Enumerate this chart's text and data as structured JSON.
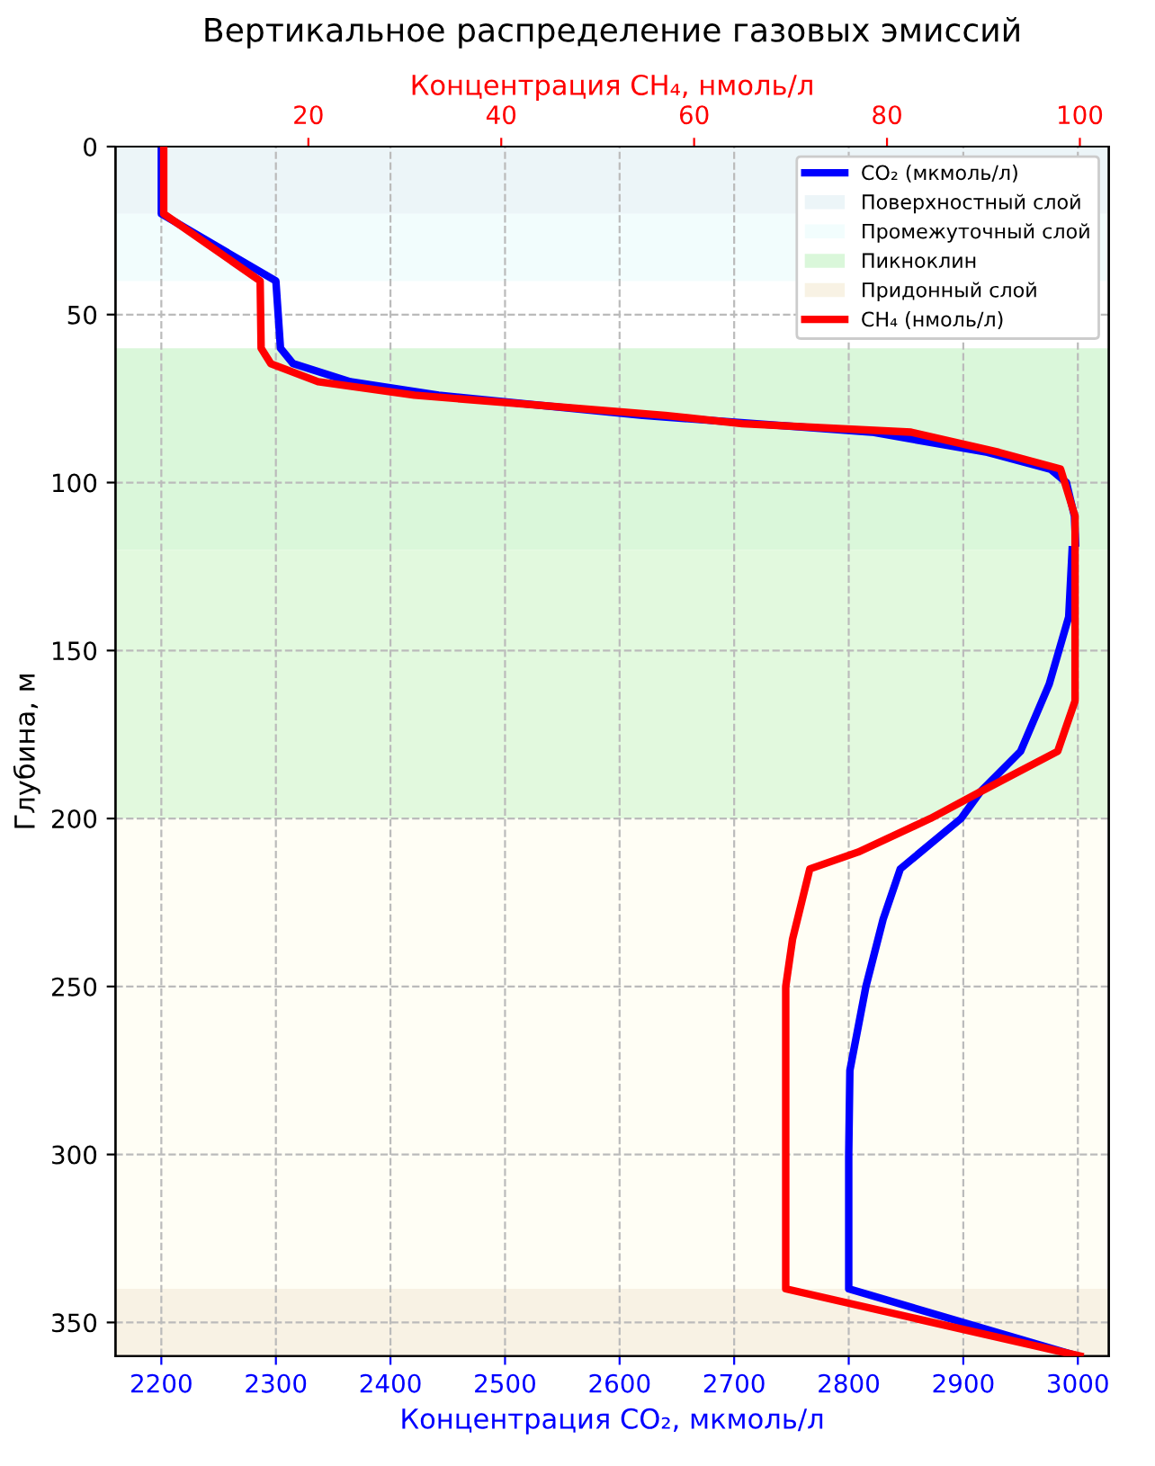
{
  "chart_data": {
    "type": "line",
    "title": "Вертикальное распределение газовых эмиссий",
    "ylabel": "Глубина, м",
    "xlabel": "Концентрация CO₂, мкмоль/л",
    "x2label": "Концентрация CH₄, нмоль/л",
    "xlim": [
      2160,
      3027
    ],
    "xticks": [
      2200,
      2300,
      2400,
      2500,
      2600,
      2700,
      2800,
      2900,
      3000
    ],
    "x2lim": [
      0,
      103
    ],
    "x2ticks": [
      20,
      40,
      60,
      80,
      100
    ],
    "ylim": [
      360,
      0
    ],
    "yticks": [
      0,
      50,
      100,
      150,
      200,
      250,
      300,
      350
    ],
    "grid": true,
    "legend": "top right",
    "line_style": "solid",
    "marker": "none",
    "bands": [
      {
        "axis": "y",
        "from": 0,
        "to": 20,
        "label": "Поверхностный слой",
        "color": "#ecf5f8"
      },
      {
        "axis": "y",
        "from": 20,
        "to": 40,
        "label": "Промежуточный слой",
        "color": "#f2fdfd"
      },
      {
        "axis": "y",
        "from": 60,
        "to": 120,
        "label": "Пикноклин",
        "color": "#daf7da"
      },
      {
        "axis": "y",
        "from": 120,
        "to": 200,
        "color": "#e2f9de"
      },
      {
        "axis": "y",
        "from": 200,
        "to": 340,
        "color": "#fffef5"
      },
      {
        "axis": "y",
        "from": 340,
        "to": 360,
        "label": "Придонный слой",
        "color": "#f8f2e4"
      }
    ],
    "series": [
      {
        "name": "CO₂ (мкмоль/л)",
        "color": "#0000ff",
        "x": [
          2200,
          2200,
          2300,
          2304,
          2315,
          2365,
          2442,
          2620,
          2820,
          2921,
          2976,
          2990,
          2997,
          2998,
          null,
          2995,
          2992,
          2975,
          2950,
          2915,
          2898,
          2845,
          2830,
          2815,
          2801,
          2800,
          2800,
          3000
        ],
        "values": [
          0,
          20,
          40,
          60,
          64.6,
          70,
          74,
          80,
          85,
          91,
          96,
          100,
          110,
          118,
          null,
          120,
          140,
          160,
          180,
          192,
          200,
          215,
          230,
          250,
          275,
          300,
          340,
          360
        ]
      },
      {
        "name": "CH₄ (нмоль/л)",
        "color": "#ff0000",
        "axis": "x2",
        "x": [
          5,
          5,
          15,
          15.1,
          16.1,
          21,
          31,
          57,
          65,
          82.5,
          91.6,
          98,
          99.5,
          99.5,
          99.5,
          97.7,
          89.7,
          84.5,
          77,
          72,
          70.2,
          69.5,
          69.5,
          100
        ],
        "values": [
          0,
          20,
          40,
          60,
          64.6,
          70,
          74,
          80,
          82.5,
          85,
          91,
          96,
          110,
          140,
          165,
          180,
          192,
          200,
          210,
          215,
          236,
          250,
          340,
          360
        ]
      }
    ]
  }
}
